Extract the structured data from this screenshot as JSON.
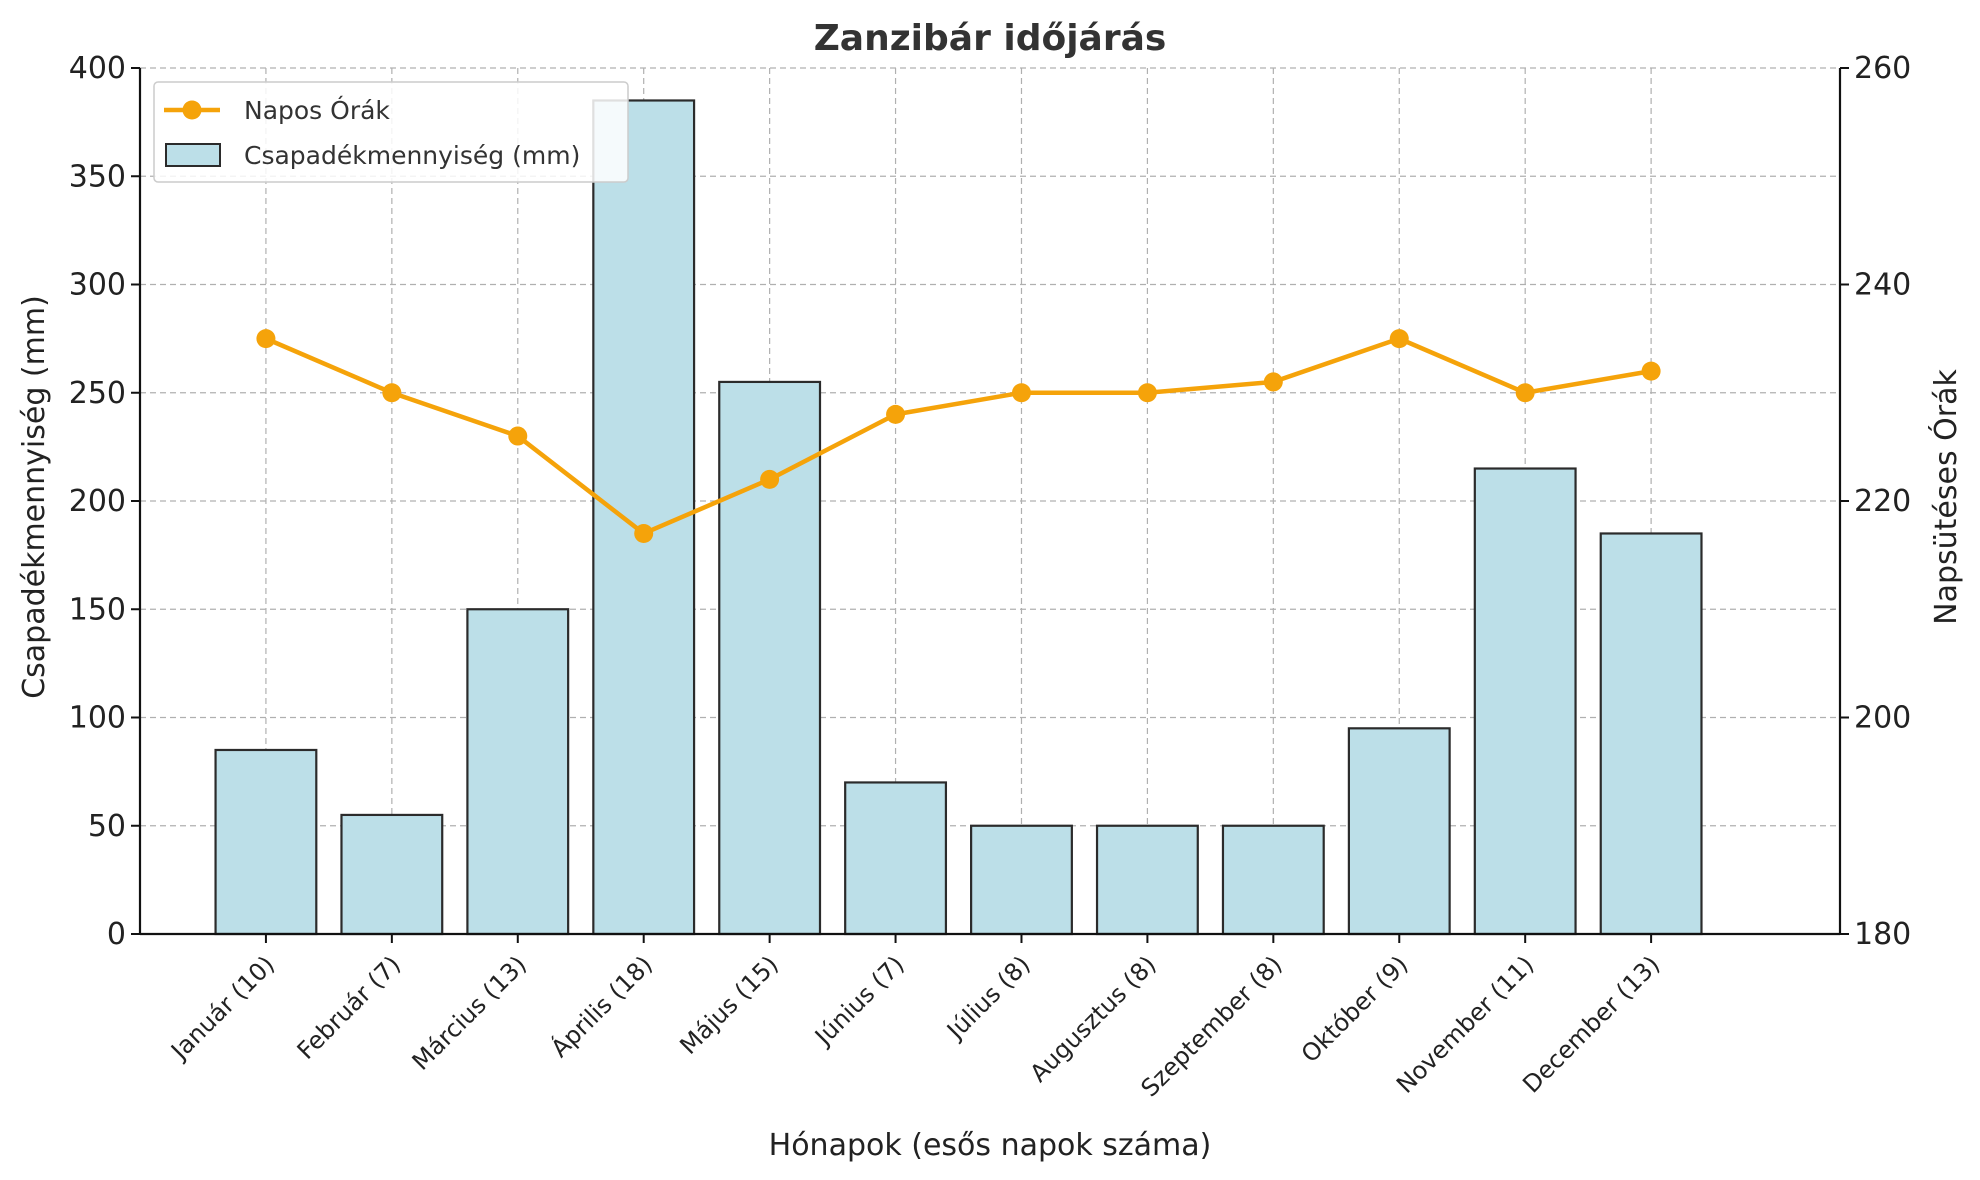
{
  "chart_data": {
    "type": "bar",
    "title": "Zanzibár időjárás",
    "xlabel": "Hónapok (esős napok száma)",
    "ylabel": "Csapadékmennyiség (mm)",
    "y2label": "Napsütéses Órák",
    "categories": [
      "Január (10)",
      "Február (7)",
      "Március (13)",
      "Április (18)",
      "Május (15)",
      "Június (7)",
      "Július (8)",
      "Augusztus (8)",
      "Szeptember (8)",
      "Október (9)",
      "November (11)",
      "December (13)"
    ],
    "ylim": [
      0,
      400
    ],
    "y2lim": [
      180,
      260
    ],
    "yticks": [
      0,
      50,
      100,
      150,
      200,
      250,
      300,
      350,
      400
    ],
    "y2ticks": [
      180,
      200,
      220,
      240,
      260
    ],
    "grid": true,
    "legend_position": "top-left",
    "series": [
      {
        "name": "Csapadékmennyiség (mm)",
        "type": "bar",
        "axis": "left",
        "color": "#bcdfe8",
        "values": [
          85,
          55,
          150,
          385,
          255,
          70,
          50,
          50,
          50,
          95,
          215,
          185
        ]
      },
      {
        "name": "Napos Órák",
        "type": "line",
        "axis": "right",
        "color": "#f5a30a",
        "values": [
          235,
          230,
          226,
          217,
          222,
          228,
          230,
          230,
          231,
          235,
          230,
          232
        ]
      }
    ]
  }
}
